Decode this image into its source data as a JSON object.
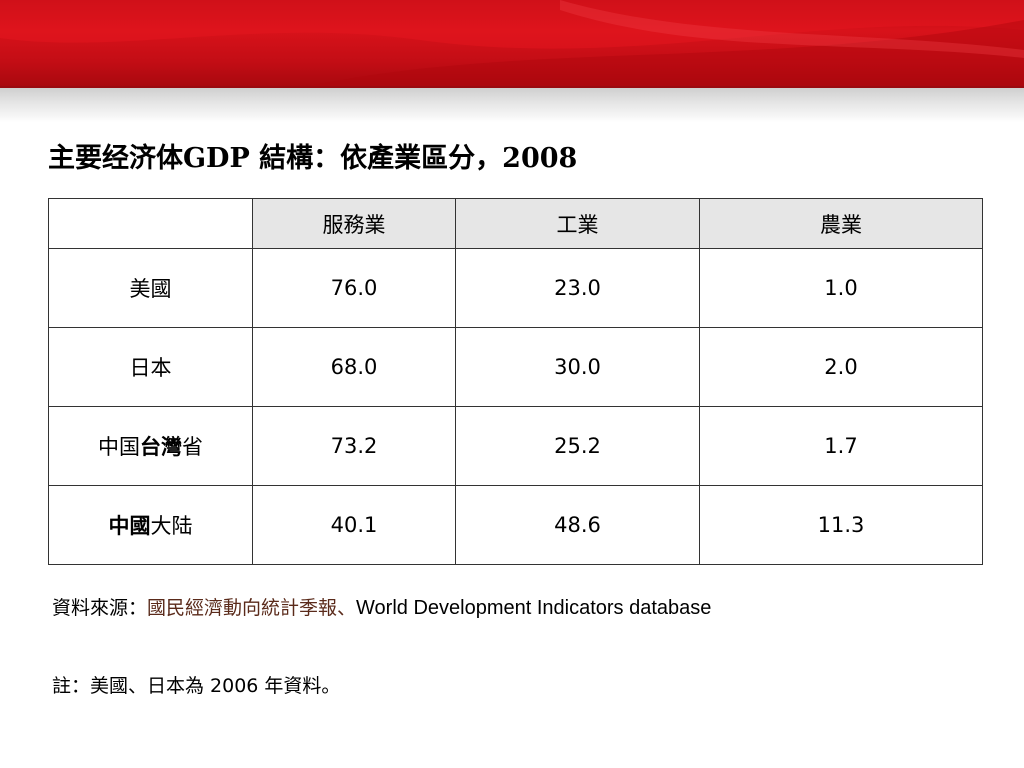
{
  "title": "主要经济体GDP 結構：依產業區分，2008",
  "table": {
    "headers": [
      "",
      "服務業",
      "工業",
      "農業"
    ],
    "rows": [
      {
        "label": "美國",
        "label_parts": [
          "美國",
          "",
          ""
        ],
        "values": [
          "76.0",
          "23.0",
          "1.0"
        ]
      },
      {
        "label": "日本",
        "label_parts": [
          "",
          "日本",
          ""
        ],
        "values": [
          "68.0",
          "30.0",
          "2.0"
        ]
      },
      {
        "label": "中国台灣省",
        "label_parts": [
          "中国",
          "台灣",
          "省"
        ],
        "values": [
          "73.2",
          "25.2",
          "1.7"
        ]
      },
      {
        "label": "中國大陆",
        "label_parts": [
          "中國",
          "大陆",
          ""
        ],
        "values": [
          "40.1",
          "48.6",
          "11.3"
        ]
      }
    ]
  },
  "source": {
    "prefix": "資料來源：",
    "publication": "國民經濟動向統計季報、",
    "database": "World Development Indicators database"
  },
  "note": "註：美國、日本為 2006 年資料。",
  "colors": {
    "banner_red": "#d8121a",
    "header_fill": "#e6e6e6",
    "border": "#333333",
    "source_publication": "#5a2a1a"
  }
}
